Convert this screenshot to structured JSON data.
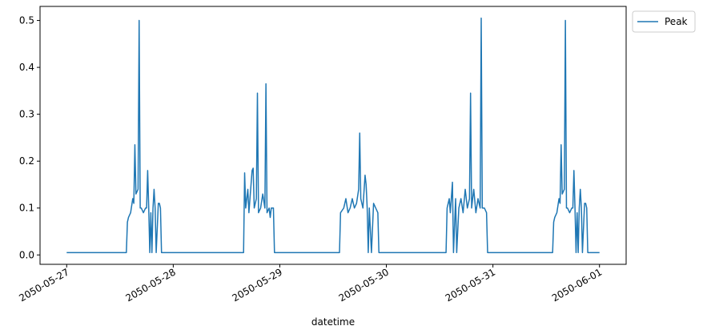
{
  "chart_data": {
    "type": "line",
    "xlabel": "datetime",
    "x": [
      0,
      0.3,
      0.56,
      0.57,
      0.58,
      0.6,
      0.62,
      0.63,
      0.64,
      0.65,
      0.67,
      0.68,
      0.69,
      0.7,
      0.72,
      0.74,
      0.75,
      0.76,
      0.77,
      0.78,
      0.79,
      0.8,
      0.81,
      0.82,
      0.83,
      0.84,
      0.86,
      0.87,
      0.88,
      0.89,
      0.9,
      0.91,
      1.0,
      1.3,
      1.66,
      1.67,
      1.68,
      1.7,
      1.71,
      1.72,
      1.74,
      1.75,
      1.76,
      1.78,
      1.79,
      1.8,
      1.82,
      1.84,
      1.86,
      1.87,
      1.88,
      1.9,
      1.91,
      1.92,
      1.94,
      1.95,
      2.0,
      2.3,
      2.56,
      2.57,
      2.6,
      2.62,
      2.64,
      2.66,
      2.68,
      2.7,
      2.72,
      2.74,
      2.75,
      2.76,
      2.78,
      2.8,
      2.81,
      2.82,
      2.83,
      2.84,
      2.86,
      2.88,
      2.9,
      2.92,
      2.93,
      3.0,
      3.3,
      3.56,
      3.57,
      3.59,
      3.6,
      3.62,
      3.63,
      3.65,
      3.66,
      3.68,
      3.7,
      3.72,
      3.74,
      3.76,
      3.78,
      3.79,
      3.8,
      3.82,
      3.84,
      3.86,
      3.88,
      3.89,
      3.9,
      3.92,
      3.94,
      3.95,
      4.0,
      4.3,
      4.56,
      4.57,
      4.58,
      4.6,
      4.62,
      4.63,
      4.64,
      4.65,
      4.67,
      4.68,
      4.69,
      4.7,
      4.72,
      4.74,
      4.75,
      4.76,
      4.77,
      4.78,
      4.79,
      4.8,
      4.81,
      4.82,
      4.83,
      4.84,
      4.86,
      4.87,
      4.88,
      4.89,
      4.9,
      4.91,
      5.0
    ],
    "series": [
      {
        "name": "Peak",
        "color": "#1f77b4",
        "values": [
          0.005,
          0.005,
          0.005,
          0.07,
          0.08,
          0.09,
          0.12,
          0.11,
          0.235,
          0.13,
          0.14,
          0.5,
          0.1,
          0.1,
          0.09,
          0.1,
          0.1,
          0.18,
          0.1,
          0.005,
          0.09,
          0.005,
          0.1,
          0.14,
          0.1,
          0.005,
          0.11,
          0.11,
          0.1,
          0.005,
          0.005,
          0.005,
          0.005,
          0.005,
          0.005,
          0.175,
          0.1,
          0.14,
          0.09,
          0.12,
          0.18,
          0.185,
          0.1,
          0.12,
          0.345,
          0.09,
          0.1,
          0.13,
          0.1,
          0.365,
          0.09,
          0.1,
          0.08,
          0.1,
          0.1,
          0.005,
          0.005,
          0.005,
          0.005,
          0.09,
          0.1,
          0.12,
          0.09,
          0.1,
          0.12,
          0.1,
          0.11,
          0.14,
          0.26,
          0.12,
          0.1,
          0.17,
          0.15,
          0.1,
          0.005,
          0.1,
          0.005,
          0.11,
          0.1,
          0.09,
          0.005,
          0.005,
          0.005,
          0.005,
          0.1,
          0.12,
          0.09,
          0.155,
          0.005,
          0.12,
          0.005,
          0.1,
          0.12,
          0.09,
          0.14,
          0.1,
          0.12,
          0.345,
          0.1,
          0.14,
          0.09,
          0.12,
          0.1,
          0.505,
          0.1,
          0.1,
          0.09,
          0.005,
          0.005,
          0.005,
          0.005,
          0.07,
          0.08,
          0.09,
          0.12,
          0.11,
          0.235,
          0.13,
          0.14,
          0.5,
          0.1,
          0.1,
          0.09,
          0.1,
          0.1,
          0.18,
          0.1,
          0.005,
          0.09,
          0.005,
          0.1,
          0.14,
          0.1,
          0.005,
          0.11,
          0.11,
          0.1,
          0.005,
          0.005,
          0.005,
          0.005
        ]
      }
    ],
    "xlim": [
      -0.25,
      5.25
    ],
    "xticks": [
      {
        "value": 0,
        "label": "2050-05-27"
      },
      {
        "value": 1,
        "label": "2050-05-28"
      },
      {
        "value": 2,
        "label": "2050-05-29"
      },
      {
        "value": 3,
        "label": "2050-05-30"
      },
      {
        "value": 4,
        "label": "2050-05-31"
      },
      {
        "value": 5,
        "label": "2050-06-01"
      }
    ],
    "ylim": [
      -0.02,
      0.53
    ],
    "yticks": [
      {
        "value": 0,
        "label": "0.0"
      },
      0.1,
      0.2,
      0.3,
      0.4,
      0.5
    ],
    "legend": "outside-upper-right"
  }
}
